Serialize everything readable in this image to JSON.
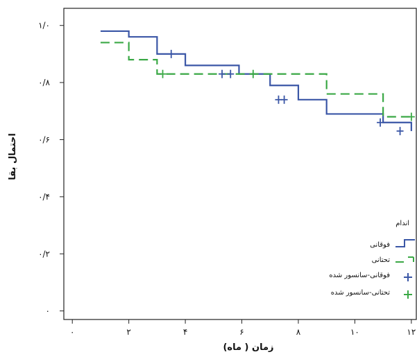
{
  "chart_data": {
    "type": "line",
    "subtype": "kaplan-meier-step",
    "xlabel": "زمان ( ماه)",
    "ylabel": "احتمال بقا",
    "xlim": [
      -0.3,
      12.2
    ],
    "ylim": [
      -0.03,
      1.06
    ],
    "x_ticks": [
      0,
      2,
      4,
      6,
      8,
      10,
      12
    ],
    "x_tick_labels": [
      "۰",
      "۲",
      "۴",
      "۶",
      "۸",
      "۱۰",
      "۱۲"
    ],
    "y_ticks": [
      0,
      0.2,
      0.4,
      0.6,
      0.8,
      1.0
    ],
    "y_tick_labels": [
      "۰",
      "۰/۲",
      "۰/۴",
      "۰/۶",
      "۰/۸",
      "۱/۰"
    ],
    "grid": false,
    "legend": {
      "title": "اندام",
      "position": "right",
      "entries": [
        "فوقانی",
        "تحتانی",
        "فوقانی-سانسور شده",
        "تحتانی-سانسور شده"
      ]
    },
    "series": [
      {
        "name": "فوقانی",
        "color": "#3a56a6",
        "dash": "solid",
        "x": [
          1.0,
          2.0,
          3.0,
          4.0,
          5.9,
          7.0,
          8.0,
          9.0,
          11.0,
          12.0
        ],
        "y": [
          0.98,
          0.96,
          0.9,
          0.86,
          0.83,
          0.79,
          0.74,
          0.69,
          0.66,
          0.63
        ]
      },
      {
        "name": "تحتانی",
        "color": "#3aa845",
        "dash": "dashed",
        "x": [
          1.0,
          2.0,
          3.0,
          9.0,
          11.0,
          12.0
        ],
        "y": [
          0.94,
          0.88,
          0.83,
          0.76,
          0.68,
          0.68
        ]
      }
    ],
    "censored": [
      {
        "series": "فوقانی-سانسور شده",
        "color": "#3a56a6",
        "x": [
          3.5,
          5.3,
          5.6,
          7.3,
          7.5,
          10.9,
          11.6
        ],
        "y": [
          0.9,
          0.83,
          0.83,
          0.74,
          0.74,
          0.66,
          0.63
        ]
      },
      {
        "series": "تحتانی-سانسور شده",
        "color": "#3aa845",
        "x": [
          3.2,
          6.4,
          12.0
        ],
        "y": [
          0.83,
          0.83,
          0.68
        ]
      }
    ]
  }
}
